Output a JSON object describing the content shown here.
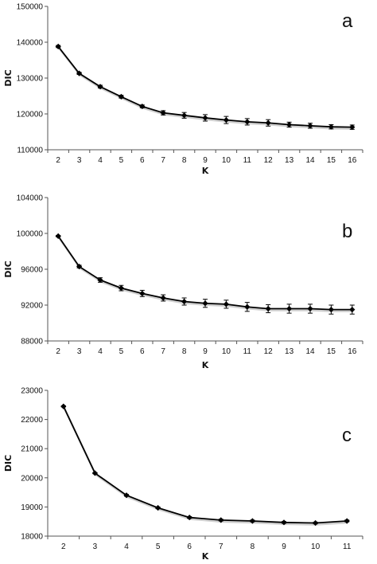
{
  "chart_data": [
    {
      "type": "line",
      "panel_label": "a",
      "xlabel": "K",
      "ylabel": "DIC",
      "x": [
        2,
        3,
        4,
        5,
        6,
        7,
        8,
        9,
        10,
        11,
        12,
        13,
        14,
        15,
        16
      ],
      "series": [
        {
          "values": [
            138800,
            131300,
            127600,
            124800,
            122100,
            120300,
            119600,
            118900,
            118300,
            117800,
            117500,
            117000,
            116700,
            116400,
            116300
          ],
          "error": [
            300,
            300,
            400,
            400,
            400,
            600,
            800,
            900,
            1000,
            900,
            900,
            700,
            700,
            600,
            600
          ]
        }
      ],
      "ylim": [
        110000,
        150000
      ],
      "yticks": [
        110000,
        120000,
        130000,
        140000,
        150000
      ],
      "grid": false,
      "color": "#000000"
    },
    {
      "type": "line",
      "panel_label": "b",
      "xlabel": "K",
      "ylabel": "DIC",
      "x": [
        2,
        3,
        4,
        5,
        6,
        7,
        8,
        9,
        10,
        11,
        12,
        13,
        14,
        15,
        16
      ],
      "series": [
        {
          "values": [
            99700,
            96300,
            94800,
            93900,
            93300,
            92800,
            92400,
            92200,
            92100,
            91800,
            91600,
            91600,
            91600,
            91500,
            91500
          ],
          "error": [
            80,
            150,
            250,
            300,
            350,
            350,
            400,
            450,
            450,
            500,
            450,
            500,
            500,
            500,
            500
          ]
        }
      ],
      "ylim": [
        88000,
        104000
      ],
      "yticks": [
        88000,
        92000,
        96000,
        100000,
        104000
      ],
      "grid": false,
      "color": "#000000"
    },
    {
      "type": "line",
      "panel_label": "c",
      "xlabel": "K",
      "ylabel": "DIC",
      "x": [
        2,
        3,
        4,
        5,
        6,
        7,
        8,
        9,
        10,
        11
      ],
      "series": [
        {
          "values": [
            22450,
            20160,
            19400,
            18970,
            18640,
            18550,
            18520,
            18470,
            18450,
            18520
          ],
          "error": [
            20,
            20,
            30,
            30,
            30,
            30,
            30,
            30,
            30,
            30
          ]
        }
      ],
      "ylim": [
        18000,
        23000
      ],
      "yticks": [
        18000,
        19000,
        20000,
        21000,
        22000,
        23000
      ],
      "grid": false,
      "color": "#000000"
    }
  ]
}
